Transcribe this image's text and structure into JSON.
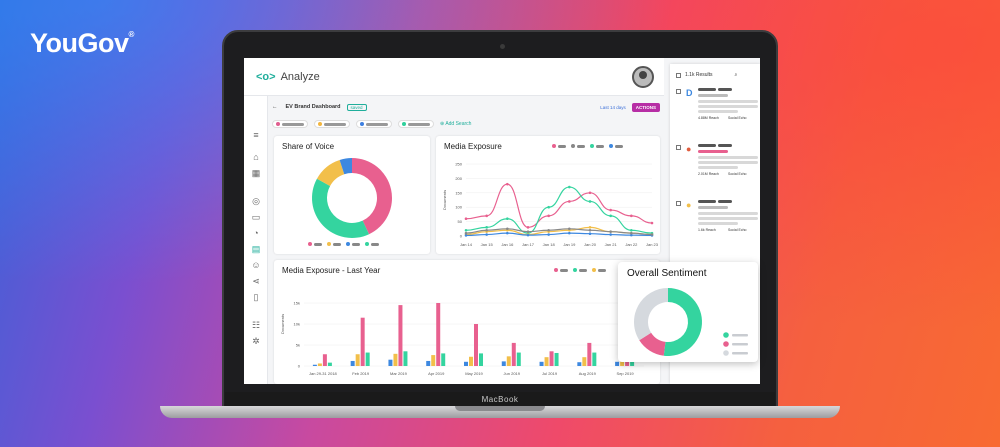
{
  "brand": {
    "name": "YouGov",
    "mark": "®"
  },
  "laptop": {
    "label": "MacBook"
  },
  "app": {
    "logo_mark": "<o>",
    "name": "Analyze",
    "dashboard_title": "EV Brand Dashboard",
    "dashboard_tag": "saved",
    "date_range": "Last 14 days",
    "actions_label": "ACTIONS",
    "add_search_label": "Add Search",
    "filter_colors": [
      "#e05d8f",
      "#f3b63f",
      "#3d7fe0",
      "#2fd09c"
    ]
  },
  "cards": {
    "share_of_voice": {
      "title": "Share of Voice"
    },
    "media_exposure": {
      "title": "Media Exposure",
      "ylabel": "Documents"
    },
    "media_last_year": {
      "title": "Media Exposure - Last Year",
      "ylabel": "Documents"
    },
    "sentiment": {
      "title": "Overall Sentiment"
    }
  },
  "results": {
    "count_label": "1.1k Results",
    "items": [
      {
        "reach": "4.88M Reach",
        "echo": "Social Echo"
      },
      {
        "reach": "2.01M Reach",
        "echo": "Social Echo"
      },
      {
        "reach": "1.6k Reach",
        "echo": "Social Echo"
      }
    ]
  },
  "chart_data": [
    {
      "type": "pie",
      "title": "Share of Voice",
      "categories": [
        "pink",
        "green",
        "yellow",
        "blue"
      ],
      "values": [
        43,
        40,
        12,
        5
      ],
      "colors": [
        "#e8608f",
        "#34d49f",
        "#f2bf4a",
        "#3d88e0"
      ]
    },
    {
      "type": "line",
      "title": "Media Exposure",
      "x": [
        "Jan 14",
        "Jan 15",
        "Jan 16",
        "Jan 17",
        "Jan 18",
        "Jan 19",
        "Jan 20",
        "Jan 21",
        "Jan 22",
        "Jan 23"
      ],
      "ylim": [
        0,
        250
      ],
      "yticks": [
        0,
        50,
        100,
        150,
        200,
        250
      ],
      "ylabel": "Documents",
      "series": [
        {
          "color": "#e8608f",
          "values": [
            60,
            70,
            180,
            30,
            70,
            120,
            150,
            90,
            70,
            45
          ]
        },
        {
          "color": "#34d49f",
          "values": [
            20,
            30,
            60,
            10,
            100,
            170,
            120,
            70,
            20,
            10
          ]
        },
        {
          "color": "#f2bf4a",
          "values": [
            5,
            15,
            20,
            5,
            15,
            20,
            30,
            15,
            10,
            5
          ]
        },
        {
          "color": "#3d88e0",
          "values": [
            2,
            5,
            10,
            3,
            5,
            10,
            8,
            5,
            3,
            2
          ]
        },
        {
          "color": "#888888",
          "values": [
            10,
            20,
            25,
            15,
            20,
            25,
            20,
            15,
            10,
            5
          ]
        }
      ]
    },
    {
      "type": "bar",
      "title": "Media Exposure - Last Year",
      "categories": [
        "Jan 29-31 2018",
        "Feb 2019",
        "Mar 2019",
        "Apr 2019",
        "May 2019",
        "Jun 2019",
        "Jul 2019",
        "Aug 2019",
        "Sep 2019"
      ],
      "ylim": [
        0,
        20000
      ],
      "yticks": [
        "0",
        "5k",
        "10k",
        "15k"
      ],
      "ylabel": "Documents",
      "series": [
        {
          "color": "#3d88e0",
          "values": [
            300,
            1200,
            1500,
            1200,
            1000,
            1100,
            1000,
            900,
            1000
          ]
        },
        {
          "color": "#f2bf4a",
          "values": [
            600,
            2800,
            2900,
            2600,
            2200,
            2300,
            2100,
            2100,
            2300
          ]
        },
        {
          "color": "#e8608f",
          "values": [
            2800,
            11500,
            14500,
            15000,
            10000,
            5500,
            3500,
            5500,
            3000
          ]
        },
        {
          "color": "#34d49f",
          "values": [
            800,
            3200,
            3500,
            3000,
            3000,
            3200,
            3100,
            3200,
            3300
          ]
        }
      ]
    },
    {
      "type": "pie",
      "title": "Overall Sentiment",
      "categories": [
        "positive",
        "negative",
        "neutral"
      ],
      "values": [
        52,
        14,
        34
      ],
      "colors": [
        "#34d49f",
        "#e8608f",
        "#d5d9de"
      ]
    }
  ]
}
